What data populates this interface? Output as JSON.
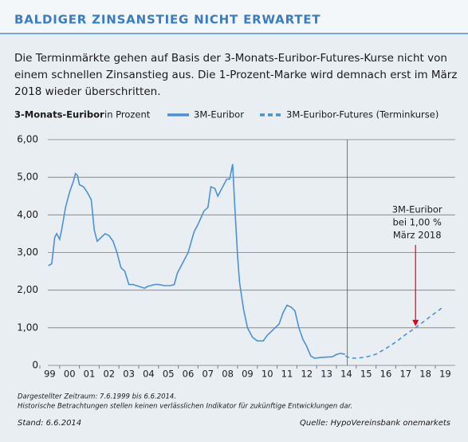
{
  "chart_data": {
    "type": "line",
    "title": "BALDIGER ZINSANSTIEG NICHT ERWARTET",
    "subtitle": [
      "Die Terminmärkte gehen auf Basis der 3-Monats-Euribor-Futures-Kurse nicht von",
      "einem schnellen Zinsanstieg aus. Die 1-Prozent-Marke wird demnach erst im März",
      "2018 wieder überschritten."
    ],
    "y_label": "3-Monats-Euribor",
    "y_unit_label": "in Prozent",
    "series": [
      {
        "name": "3M-Euribor",
        "color": "#4b92d4",
        "dashed": false,
        "x": [
          1999.43,
          1999.6,
          1999.75,
          1999.85,
          2000.0,
          2000.1,
          2000.3,
          2000.5,
          2000.7,
          2000.8,
          2000.9,
          2001.0,
          2001.2,
          2001.4,
          2001.6,
          2001.75,
          2001.9,
          2002.0,
          2002.3,
          2002.5,
          2002.7,
          2002.9,
          2003.1,
          2003.3,
          2003.5,
          2003.7,
          2004.0,
          2004.3,
          2004.45,
          2004.6,
          2004.8,
          2005.0,
          2005.3,
          2005.6,
          2005.8,
          2005.95,
          2006.2,
          2006.5,
          2006.8,
          2007.0,
          2007.3,
          2007.5,
          2007.65,
          2007.85,
          2008.0,
          2008.2,
          2008.45,
          2008.6,
          2008.75,
          2008.85,
          2009.0,
          2009.1,
          2009.3,
          2009.5,
          2009.75,
          2010.0,
          2010.3,
          2010.5,
          2010.7,
          2010.9,
          2011.1,
          2011.3,
          2011.5,
          2011.7,
          2011.9,
          2012.1,
          2012.3,
          2012.5,
          2012.7,
          2012.9,
          2013.2,
          2013.5,
          2013.8,
          2014.0,
          2014.2,
          2014.43
        ],
        "values": [
          2.65,
          2.7,
          3.4,
          3.5,
          3.35,
          3.6,
          4.2,
          4.6,
          4.9,
          5.1,
          5.05,
          4.8,
          4.75,
          4.6,
          4.4,
          3.6,
          3.3,
          3.35,
          3.5,
          3.45,
          3.3,
          3.0,
          2.6,
          2.5,
          2.15,
          2.15,
          2.1,
          2.05,
          2.1,
          2.12,
          2.15,
          2.15,
          2.12,
          2.12,
          2.15,
          2.45,
          2.7,
          3.0,
          3.55,
          3.75,
          4.1,
          4.2,
          4.75,
          4.7,
          4.5,
          4.7,
          4.95,
          4.95,
          5.35,
          4.3,
          2.9,
          2.2,
          1.5,
          1.0,
          0.75,
          0.65,
          0.65,
          0.8,
          0.9,
          1.0,
          1.1,
          1.4,
          1.6,
          1.55,
          1.45,
          1.0,
          0.7,
          0.5,
          0.25,
          0.19,
          0.21,
          0.22,
          0.23,
          0.29,
          0.32,
          0.3
        ]
      },
      {
        "name": "3M-Euribor-Futures (Terminkurse)",
        "color": "#4b92d4",
        "dashed": true,
        "x": [
          2014.45,
          2014.7,
          2015.0,
          2015.5,
          2016.0,
          2016.5,
          2017.0,
          2017.5,
          2018.0,
          2018.5,
          2019.0,
          2019.4
        ],
        "values": [
          0.25,
          0.2,
          0.19,
          0.22,
          0.3,
          0.45,
          0.62,
          0.82,
          1.0,
          1.2,
          1.4,
          1.55
        ]
      }
    ],
    "annotation": [
      "3M-Euribor",
      "bei 1,00 %",
      "März 2018"
    ],
    "xlim": [
      1999,
      2020
    ],
    "xticks": [
      {
        "value": 1999,
        "label": "99"
      },
      {
        "value": 2000,
        "label": "00"
      },
      {
        "value": 2001,
        "label": "01"
      },
      {
        "value": 2002,
        "label": "02"
      },
      {
        "value": 2003,
        "label": "03"
      },
      {
        "value": 2004,
        "label": "04"
      },
      {
        "value": 2005,
        "label": "05"
      },
      {
        "value": 2006,
        "label": "06"
      },
      {
        "value": 2007,
        "label": "07"
      },
      {
        "value": 2008,
        "label": "08"
      },
      {
        "value": 2009,
        "label": "09"
      },
      {
        "value": 2010,
        "label": "10"
      },
      {
        "value": 2011,
        "label": "11"
      },
      {
        "value": 2012,
        "label": "12"
      },
      {
        "value": 2013,
        "label": "13"
      },
      {
        "value": 2014,
        "label": "14"
      },
      {
        "value": 2015,
        "label": "15"
      },
      {
        "value": 2016,
        "label": "16"
      },
      {
        "value": 2017,
        "label": "17"
      },
      {
        "value": 2018,
        "label": "18"
      },
      {
        "value": 2019,
        "label": "19"
      }
    ],
    "ylim": [
      0,
      6
    ],
    "yticks": [
      0,
      {
        "value": 1,
        "label": "1,00"
      },
      {
        "value": 2,
        "label": "2,00"
      },
      {
        "value": 3,
        "label": "3,00"
      },
      {
        "value": 4,
        "label": "4,00"
      },
      {
        "value": 5,
        "label": "5,00"
      },
      {
        "value": 6,
        "label": "6,00"
      }
    ],
    "grid": true,
    "footnotes": [
      "Dargestellter Zeitraum: 7.6.1999 bis 6.6.2014.",
      "Historische Betrachtungen stellen keinen verlässlichen Indikator für zukünftige Entwicklungen dar."
    ],
    "date_note": "Stand: 6.6.2014",
    "source": "Quelle: HypoVereinsbank onemarkets"
  }
}
